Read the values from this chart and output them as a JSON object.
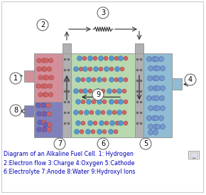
{
  "title": "Diagram of an Alkaline Fuel Cell. 1: Hydrogen\n2:Electron flow 3:Charge 4:Oxygen 5:Cathode\n6:Electrolyte 7:Anode 8:Water 9:Hydroxyl Ions",
  "title_color": "#0000bb",
  "bg_color": "#ffffff",
  "anode_pink": "#d4909a",
  "anode_blue": "#8080bb",
  "cathode_color": "#90bcd4",
  "electrolyte_color": "#b8d8b0",
  "electrode_color": "#b0b0b0",
  "figsize": [
    2.9,
    2.74
  ],
  "dpi": 100,
  "mol_blue": "#5599cc",
  "mol_pink": "#cc6666",
  "mol_blue2": "#7799cc"
}
